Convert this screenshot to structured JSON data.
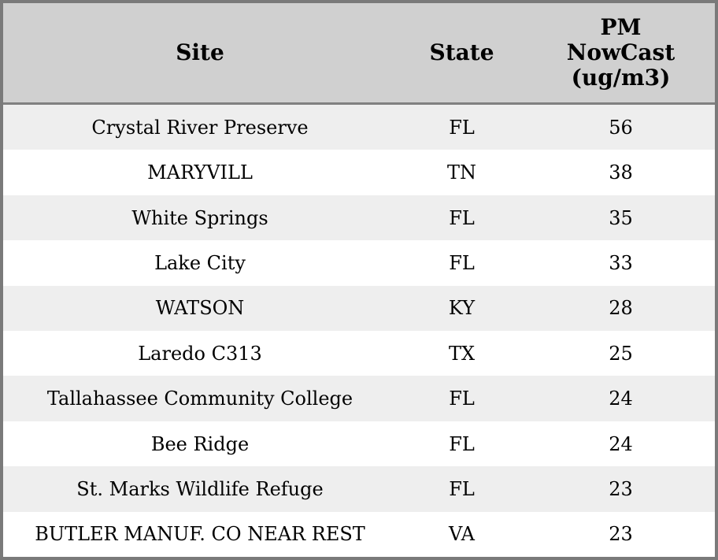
{
  "table": {
    "headers": [
      "Site",
      "State",
      "PM\nNowCast\n(ug/m3)"
    ],
    "rows": [
      {
        "site": "Crystal River Preserve",
        "state": "FL",
        "pm_nowcast": "56"
      },
      {
        "site": "MARYVILL",
        "state": "TN",
        "pm_nowcast": "38"
      },
      {
        "site": "White Springs",
        "state": "FL",
        "pm_nowcast": "35"
      },
      {
        "site": "Lake City",
        "state": "FL",
        "pm_nowcast": "33"
      },
      {
        "site": "WATSON",
        "state": "KY",
        "pm_nowcast": "28"
      },
      {
        "site": "Laredo C313",
        "state": "TX",
        "pm_nowcast": "25"
      },
      {
        "site": "Tallahassee Community College",
        "state": "FL",
        "pm_nowcast": "24"
      },
      {
        "site": "Bee Ridge",
        "state": "FL",
        "pm_nowcast": "24"
      },
      {
        "site": "St. Marks Wildlife Refuge",
        "state": "FL",
        "pm_nowcast": "23"
      },
      {
        "site": "BUTLER MANUF. CO NEAR REST",
        "state": "VA",
        "pm_nowcast": "23"
      }
    ]
  },
  "colors": {
    "header_bg": "#d0d0d0",
    "row_alt_bg": "#eeeeee",
    "border_color": "#7a7a7a",
    "divider_color": "#808080",
    "text_color": "#000000"
  }
}
